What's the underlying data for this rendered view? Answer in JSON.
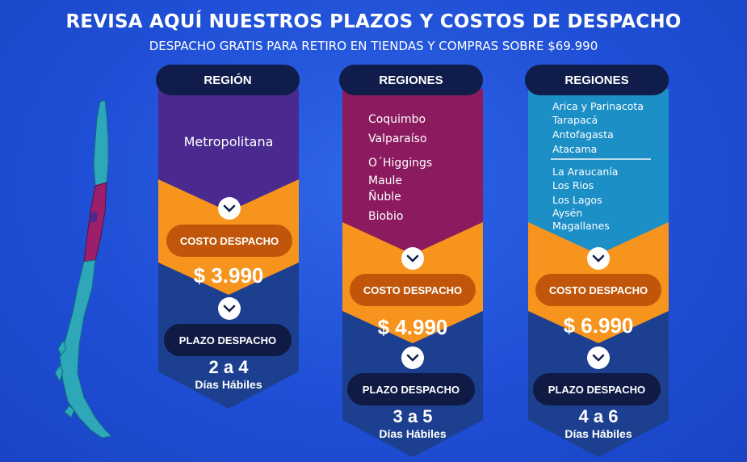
{
  "header": {
    "title": "REVISA AQUÍ NUESTROS PLAZOS Y COSTOS DE DESPACHO",
    "subtitle": "DESPACHO GRATIS PARA RETIRO EN TIENDAS Y COMPRAS SOBRE $69.990"
  },
  "cards": [
    {
      "header": "REGIÓN",
      "regions": [
        "Metropolitana"
      ],
      "cost_label": "COSTO DESPACHO",
      "price": "$ 3.990",
      "term_label": "PLAZO DESPACHO",
      "days": "2 a 4",
      "days_label": "Días Hábiles",
      "color": "#4a2a8f"
    },
    {
      "header": "REGIONES",
      "regions": [
        "Coquimbo",
        "Valparaíso",
        "O´Higgings",
        "Maule",
        "Ñuble",
        "Biobio"
      ],
      "cost_label": "COSTO DESPACHO",
      "price": "$ 4.990",
      "term_label": "PLAZO DESPACHO",
      "days": "3 a 5",
      "days_label": "Días Hábiles",
      "color": "#8b1a5e"
    },
    {
      "header": "REGIONES",
      "regions_north": [
        "Arica y Parinacota",
        "Tarapacá",
        "Antofagasta",
        "Atacama"
      ],
      "regions_south": [
        "La Araucanía",
        "Los Rios",
        "Los Lagos",
        "Aysén",
        "Magallanes"
      ],
      "cost_label": "COSTO DESPACHO",
      "price": "$ 6.990",
      "term_label": "PLAZO DESPACHO",
      "days": "4 a 6",
      "days_label": "Días Hábiles",
      "color": "#1b8fc6"
    }
  ],
  "colors": {
    "background": "#1f4fd6",
    "orange": "#f7941d",
    "dark_navy": "#101c4a",
    "bottom_blue": "#1c3f8f"
  },
  "icons": [
    "chevron-down-icon",
    "chile-map"
  ]
}
